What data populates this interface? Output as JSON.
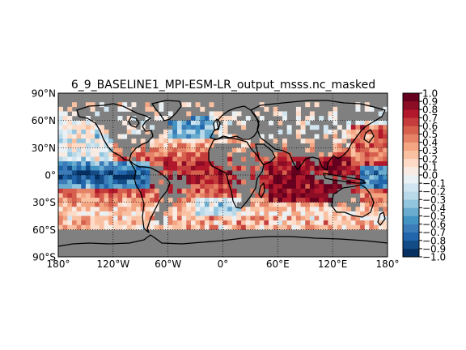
{
  "figure": {
    "title": "6_9_BASELINE1_MPI-ESM-LR_output_msss.nc_masked"
  },
  "map": {
    "projection": "equirectangular",
    "lon_range": [
      -180,
      180
    ],
    "lat_range": [
      -90,
      90
    ],
    "grid_cell_deg": 5,
    "grid_lines": "dotted",
    "masked_color": "#808080",
    "coastline_color": "#000000",
    "lat_ticks": [
      {
        "value": 90,
        "label": "90°N"
      },
      {
        "value": 60,
        "label": "60°N"
      },
      {
        "value": 30,
        "label": "30°N"
      },
      {
        "value": 0,
        "label": "0°"
      },
      {
        "value": -30,
        "label": "30°S"
      },
      {
        "value": -60,
        "label": "60°S"
      },
      {
        "value": -90,
        "label": "90°S"
      }
    ],
    "lon_ticks": [
      {
        "value": -180,
        "label": "180°"
      },
      {
        "value": -120,
        "label": "120°W"
      },
      {
        "value": -60,
        "label": "60°W"
      },
      {
        "value": 0,
        "label": "0°"
      },
      {
        "value": 60,
        "label": "60°E"
      },
      {
        "value": 120,
        "label": "120°E"
      },
      {
        "value": 180,
        "label": "180°"
      }
    ]
  },
  "colorbar": {
    "vmin": -1.0,
    "vmax": 1.0,
    "step": 0.1,
    "colormap": "RdBu_r",
    "tick_labels": [
      "1.0",
      "0.9",
      "0.8",
      "0.7",
      "0.6",
      "0.5",
      "0.4",
      "0.3",
      "0.2",
      "0.1",
      "0.0",
      "−0.1",
      "−0.2",
      "−0.3",
      "−0.4",
      "−0.5",
      "−0.6",
      "−0.7",
      "−0.8",
      "−0.9",
      "−1.0"
    ]
  }
}
